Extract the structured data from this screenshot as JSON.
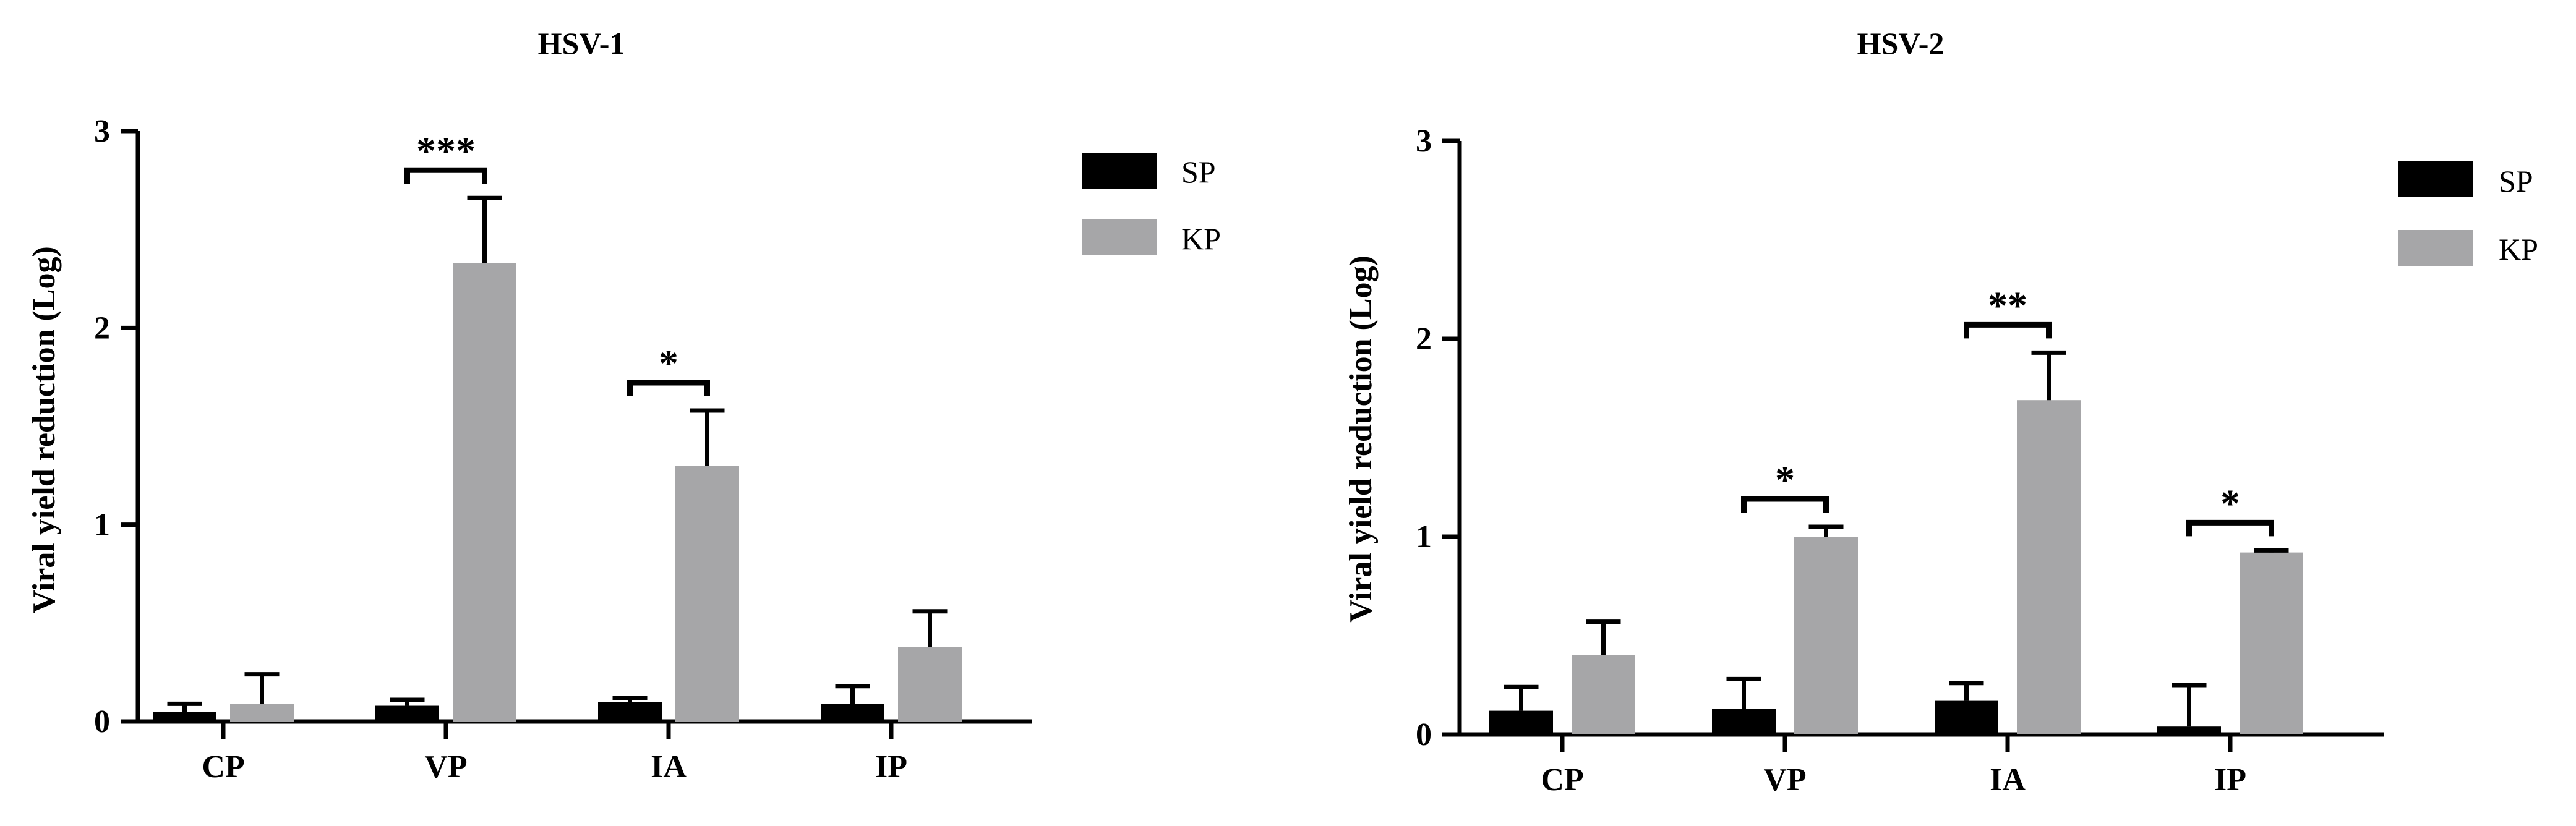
{
  "colors": {
    "SP": "#000000",
    "KP": "#a6a6a8",
    "axis": "#000000"
  },
  "chart_data": [
    {
      "type": "bar",
      "title": "HSV-1",
      "xlabel": "",
      "ylabel": "Viral yield reduction (Log)",
      "ylim": [
        0,
        3
      ],
      "yticks": [
        "0",
        "1",
        "2",
        "3"
      ],
      "categories": [
        "CP",
        "VP",
        "IA",
        "IP"
      ],
      "legend": "top-right",
      "grid": false,
      "series": [
        {
          "name": "SP",
          "values": [
            0.05,
            0.08,
            0.1,
            0.09
          ],
          "errors": [
            0.04,
            0.03,
            0.02,
            0.09
          ]
        },
        {
          "name": "KP",
          "values": [
            0.09,
            2.33,
            1.3,
            0.38
          ],
          "errors": [
            0.15,
            0.33,
            0.28,
            0.18
          ]
        }
      ],
      "significance": [
        {
          "category": "VP",
          "label": "***"
        },
        {
          "category": "IA",
          "label": "*"
        }
      ]
    },
    {
      "type": "bar",
      "title": "HSV-2",
      "xlabel": "",
      "ylabel": "Viral yield reduction (Log)",
      "ylim": [
        0,
        3
      ],
      "yticks": [
        "0",
        "1",
        "2",
        "3"
      ],
      "categories": [
        "CP",
        "VP",
        "IA",
        "IP"
      ],
      "legend": "top-right",
      "grid": false,
      "series": [
        {
          "name": "SP",
          "values": [
            0.12,
            0.13,
            0.17,
            0.04
          ],
          "errors": [
            0.12,
            0.15,
            0.09,
            0.21
          ]
        },
        {
          "name": "KP",
          "values": [
            0.4,
            1.0,
            1.69,
            0.92
          ],
          "errors": [
            0.17,
            0.05,
            0.24,
            0.01
          ]
        }
      ],
      "significance": [
        {
          "category": "VP",
          "label": "*"
        },
        {
          "category": "IA",
          "label": "**"
        },
        {
          "category": "IP",
          "label": "*"
        }
      ]
    }
  ]
}
